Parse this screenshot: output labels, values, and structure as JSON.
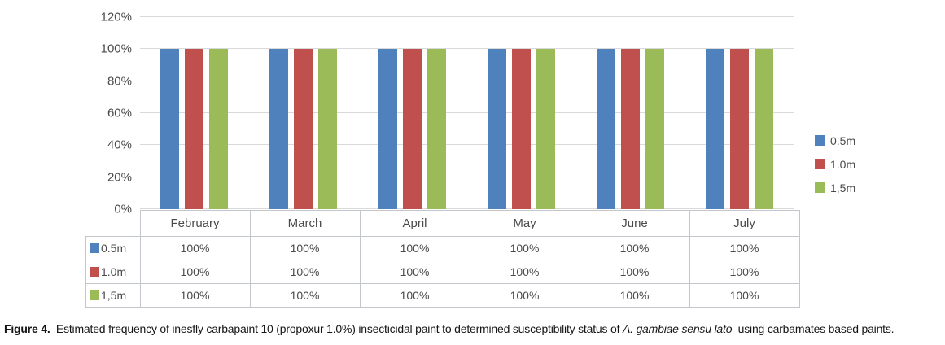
{
  "chart_data": {
    "type": "bar",
    "title": "",
    "xlabel": "",
    "ylabel": "",
    "categories": [
      "February",
      "March",
      "April",
      "May",
      "June",
      "July"
    ],
    "series": [
      {
        "name": "0.5m",
        "color": "#4f81bd",
        "values": [
          100,
          100,
          100,
          100,
          100,
          100
        ]
      },
      {
        "name": "1.0m",
        "color": "#c0504d",
        "values": [
          100,
          100,
          100,
          100,
          100,
          100
        ]
      },
      {
        "name": "1,5m",
        "color": "#9bbb59",
        "values": [
          100,
          100,
          100,
          100,
          100,
          100
        ]
      }
    ],
    "ylim": [
      0,
      120
    ],
    "ytick_step": 20,
    "ytick_labels": [
      "0%",
      "20%",
      "40%",
      "60%",
      "80%",
      "100%",
      "120%"
    ],
    "grid": true,
    "gridline_color": "#d9d9d9",
    "legend_position": "right",
    "value_format": "percent"
  },
  "legend": {
    "items": [
      {
        "label": "0.5m",
        "color": "#4f81bd"
      },
      {
        "label": "1.0m",
        "color": "#c0504d"
      },
      {
        "label": "1,5m",
        "color": "#9bbb59"
      }
    ]
  },
  "table": {
    "columns": [
      "February",
      "March",
      "April",
      "May",
      "June",
      "July"
    ],
    "rows": [
      {
        "label": "0.5m",
        "swatch_color": "#4f81bd",
        "values": [
          "100%",
          "100%",
          "100%",
          "100%",
          "100%",
          "100%"
        ]
      },
      {
        "label": "1.0m",
        "swatch_color": "#c0504d",
        "values": [
          "100%",
          "100%",
          "100%",
          "100%",
          "100%",
          "100%"
        ]
      },
      {
        "label": "1,5m",
        "swatch_color": "#9bbb59",
        "values": [
          "100%",
          "100%",
          "100%",
          "100%",
          "100%",
          "100%"
        ]
      }
    ]
  },
  "caption": {
    "label": "Figure 4.",
    "body_start": "  Estimated frequency of inesfly carbapaint 10 (propoxur 1.0%) insecticidal paint to determined susceptibility status of ",
    "species": "A. gambiae sensu lato",
    "body_end": "  using carbamates based paints."
  }
}
